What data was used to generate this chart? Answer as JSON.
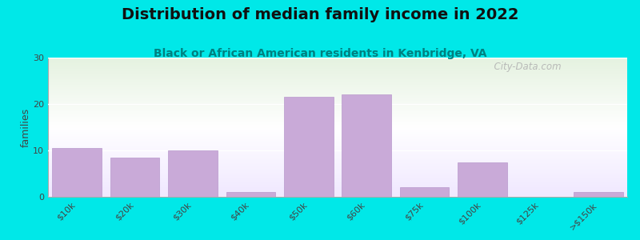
{
  "title": "Distribution of median family income in 2022",
  "subtitle": "Black or African American residents in Kenbridge, VA",
  "categories": [
    "$10k",
    "$20k",
    "$30k",
    "$40k",
    "$50k",
    "$60k",
    "$75k",
    "$100k",
    "$125k",
    ">$150k"
  ],
  "values": [
    10.5,
    8.5,
    10,
    1,
    21.5,
    22,
    2,
    7.5,
    0,
    1
  ],
  "bar_color": "#c9aad8",
  "bar_edge_color": "#b898cc",
  "ylabel": "families",
  "ylim": [
    0,
    30
  ],
  "yticks": [
    0,
    10,
    20,
    30
  ],
  "bg_colors": [
    "#e5f2e0",
    "#ffffff",
    "#f8f0ff"
  ],
  "outer_background": "#00e8e8",
  "title_fontsize": 14,
  "subtitle_fontsize": 10,
  "watermark": "  City-Data.com"
}
